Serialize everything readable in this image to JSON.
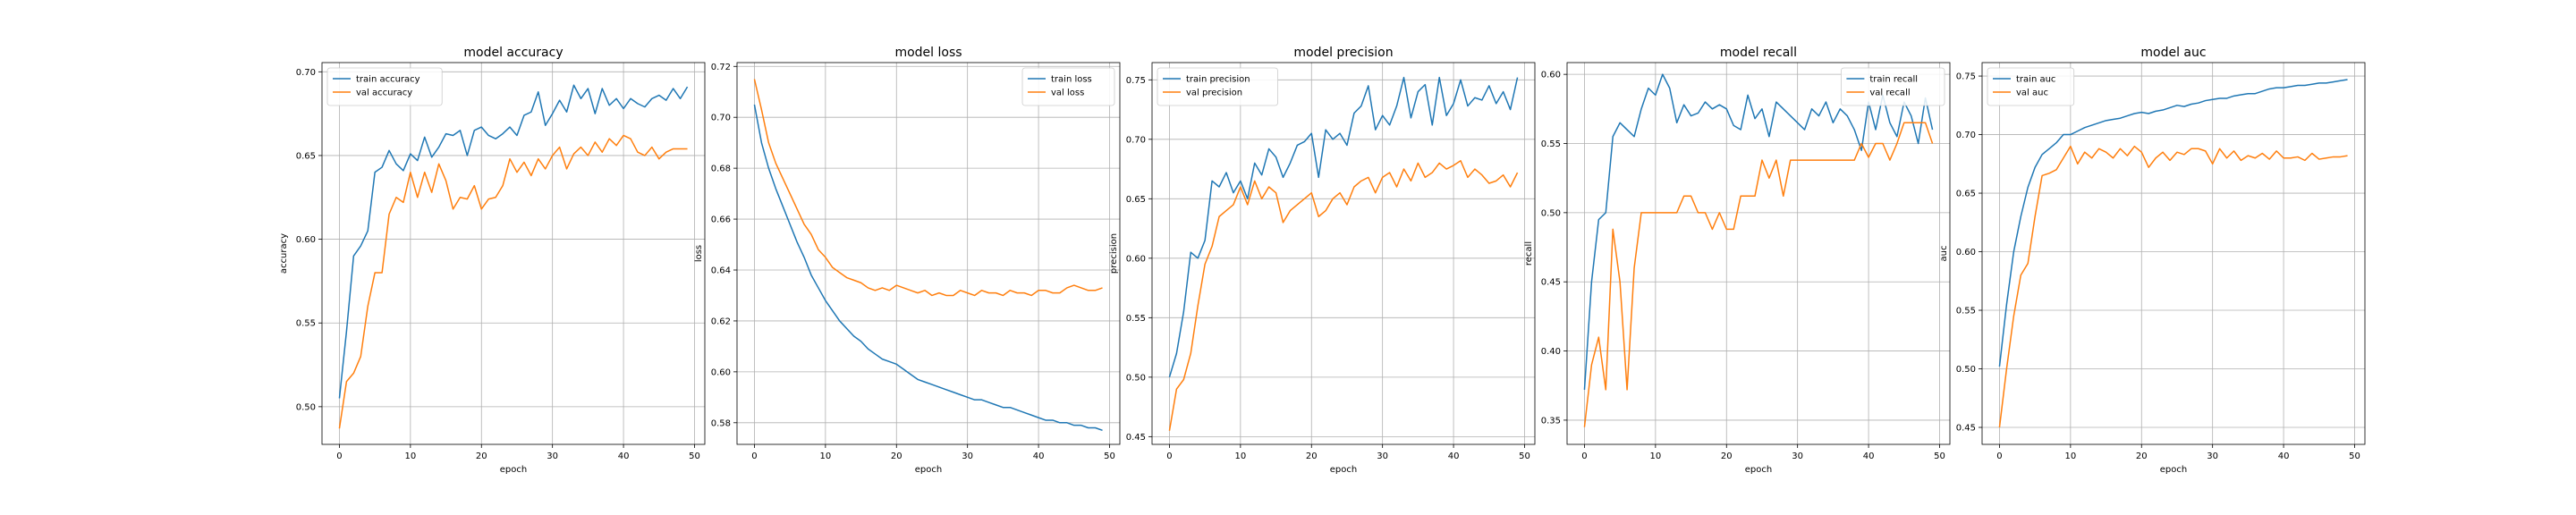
{
  "chart_data": [
    {
      "type": "line",
      "title": "model accuracy",
      "xlabel": "epoch",
      "ylabel": "accuracy",
      "xlim": [
        -2.45,
        51.45
      ],
      "ylim": [
        0.4775,
        0.7055
      ],
      "xticks": [
        "0",
        "10",
        "20",
        "30",
        "40",
        "50"
      ],
      "yticks": [
        "0.50",
        "0.55",
        "0.60",
        "0.65",
        "0.70"
      ],
      "grid": true,
      "legend_position": "upper-left",
      "series": [
        {
          "name": "train accuracy",
          "color": "#1f77b4",
          "values": [
            0.505,
            0.545,
            0.59,
            0.596,
            0.605,
            0.64,
            0.643,
            0.653,
            0.645,
            0.641,
            0.651,
            0.647,
            0.661,
            0.649,
            0.655,
            0.663,
            0.662,
            0.665,
            0.65,
            0.665,
            0.667,
            0.662,
            0.66,
            0.663,
            0.667,
            0.662,
            0.674,
            0.676,
            0.688,
            0.668,
            0.675,
            0.683,
            0.676,
            0.692,
            0.684,
            0.69,
            0.675,
            0.69,
            0.68,
            0.684,
            0.678,
            0.684,
            0.681,
            0.679,
            0.684,
            0.686,
            0.683,
            0.69,
            0.684,
            0.691
          ]
        },
        {
          "name": "val accuracy",
          "color": "#ff7f0e",
          "values": [
            0.487,
            0.515,
            0.52,
            0.53,
            0.56,
            0.58,
            0.58,
            0.615,
            0.625,
            0.622,
            0.64,
            0.625,
            0.64,
            0.628,
            0.645,
            0.635,
            0.618,
            0.625,
            0.624,
            0.632,
            0.618,
            0.624,
            0.625,
            0.632,
            0.648,
            0.64,
            0.646,
            0.638,
            0.648,
            0.642,
            0.65,
            0.655,
            0.642,
            0.651,
            0.655,
            0.65,
            0.658,
            0.652,
            0.66,
            0.656,
            0.662,
            0.66,
            0.652,
            0.65,
            0.655,
            0.648,
            0.652,
            0.654,
            0.654,
            0.654
          ]
        }
      ]
    },
    {
      "type": "line",
      "title": "model loss",
      "xlabel": "epoch",
      "ylabel": "loss",
      "xlim": [
        -2.45,
        51.45
      ],
      "ylim": [
        0.5715,
        0.7215
      ],
      "xticks": [
        "0",
        "10",
        "20",
        "30",
        "40",
        "50"
      ],
      "yticks": [
        "0.58",
        "0.60",
        "0.62",
        "0.64",
        "0.66",
        "0.68",
        "0.70",
        "0.72"
      ],
      "grid": true,
      "legend_position": "upper-right",
      "series": [
        {
          "name": "train loss",
          "color": "#1f77b4",
          "values": [
            0.705,
            0.69,
            0.68,
            0.672,
            0.665,
            0.658,
            0.651,
            0.645,
            0.638,
            0.633,
            0.628,
            0.624,
            0.62,
            0.617,
            0.614,
            0.612,
            0.609,
            0.607,
            0.605,
            0.604,
            0.603,
            0.601,
            0.599,
            0.597,
            0.596,
            0.595,
            0.594,
            0.593,
            0.592,
            0.591,
            0.59,
            0.589,
            0.589,
            0.588,
            0.587,
            0.586,
            0.586,
            0.585,
            0.584,
            0.583,
            0.582,
            0.581,
            0.581,
            0.58,
            0.58,
            0.579,
            0.579,
            0.578,
            0.578,
            0.577
          ]
        },
        {
          "name": "val loss",
          "color": "#ff7f0e",
          "values": [
            0.715,
            0.703,
            0.69,
            0.682,
            0.676,
            0.67,
            0.664,
            0.658,
            0.654,
            0.648,
            0.645,
            0.641,
            0.639,
            0.637,
            0.636,
            0.635,
            0.633,
            0.632,
            0.633,
            0.632,
            0.634,
            0.633,
            0.632,
            0.631,
            0.632,
            0.63,
            0.631,
            0.63,
            0.63,
            0.632,
            0.631,
            0.63,
            0.632,
            0.631,
            0.631,
            0.63,
            0.632,
            0.631,
            0.631,
            0.63,
            0.632,
            0.632,
            0.631,
            0.631,
            0.633,
            0.634,
            0.633,
            0.632,
            0.632,
            0.633
          ]
        }
      ]
    },
    {
      "type": "line",
      "title": "model precision",
      "xlabel": "epoch",
      "ylabel": "precision",
      "xlim": [
        -2.45,
        51.45
      ],
      "ylim": [
        0.4435,
        0.7645
      ],
      "xticks": [
        "0",
        "10",
        "20",
        "30",
        "40",
        "50"
      ],
      "yticks": [
        "0.45",
        "0.50",
        "0.55",
        "0.60",
        "0.65",
        "0.70",
        "0.75"
      ],
      "grid": true,
      "legend_position": "upper-left",
      "series": [
        {
          "name": "train precision",
          "color": "#1f77b4",
          "values": [
            0.5,
            0.52,
            0.555,
            0.605,
            0.6,
            0.615,
            0.665,
            0.66,
            0.672,
            0.655,
            0.665,
            0.65,
            0.68,
            0.67,
            0.692,
            0.685,
            0.668,
            0.68,
            0.695,
            0.698,
            0.705,
            0.668,
            0.708,
            0.7,
            0.705,
            0.695,
            0.722,
            0.728,
            0.745,
            0.708,
            0.72,
            0.712,
            0.728,
            0.752,
            0.718,
            0.74,
            0.746,
            0.712,
            0.752,
            0.72,
            0.73,
            0.75,
            0.728,
            0.735,
            0.733,
            0.745,
            0.73,
            0.74,
            0.725,
            0.752
          ]
        },
        {
          "name": "val precision",
          "color": "#ff7f0e",
          "values": [
            0.455,
            0.49,
            0.498,
            0.52,
            0.56,
            0.595,
            0.61,
            0.635,
            0.64,
            0.645,
            0.66,
            0.645,
            0.665,
            0.65,
            0.66,
            0.655,
            0.63,
            0.64,
            0.645,
            0.65,
            0.655,
            0.635,
            0.64,
            0.65,
            0.655,
            0.645,
            0.66,
            0.665,
            0.668,
            0.655,
            0.668,
            0.672,
            0.66,
            0.675,
            0.665,
            0.68,
            0.668,
            0.672,
            0.68,
            0.675,
            0.678,
            0.682,
            0.668,
            0.675,
            0.67,
            0.663,
            0.665,
            0.67,
            0.66,
            0.672
          ]
        }
      ]
    },
    {
      "type": "line",
      "title": "model recall",
      "xlabel": "epoch",
      "ylabel": "recall",
      "xlim": [
        -2.45,
        51.45
      ],
      "ylim": [
        0.3325,
        0.6085
      ],
      "xticks": [
        "0",
        "10",
        "20",
        "30",
        "40",
        "50"
      ],
      "yticks": [
        "0.35",
        "0.40",
        "0.45",
        "0.50",
        "0.55",
        "0.60"
      ],
      "grid": true,
      "legend_position": "upper-right",
      "series": [
        {
          "name": "train recall",
          "color": "#1f77b4",
          "values": [
            0.372,
            0.45,
            0.495,
            0.5,
            0.555,
            0.565,
            0.56,
            0.555,
            0.575,
            0.59,
            0.585,
            0.6,
            0.59,
            0.565,
            0.578,
            0.57,
            0.572,
            0.58,
            0.575,
            0.578,
            0.575,
            0.563,
            0.56,
            0.585,
            0.568,
            0.575,
            0.555,
            0.58,
            0.575,
            0.57,
            0.565,
            0.56,
            0.575,
            0.57,
            0.58,
            0.565,
            0.575,
            0.57,
            0.56,
            0.545,
            0.58,
            0.56,
            0.585,
            0.565,
            0.555,
            0.58,
            0.57,
            0.55,
            0.583,
            0.56
          ]
        },
        {
          "name": "val recall",
          "color": "#ff7f0e",
          "values": [
            0.345,
            0.39,
            0.41,
            0.372,
            0.488,
            0.45,
            0.372,
            0.46,
            0.5,
            0.5,
            0.5,
            0.5,
            0.5,
            0.5,
            0.512,
            0.512,
            0.5,
            0.5,
            0.488,
            0.5,
            0.488,
            0.488,
            0.512,
            0.512,
            0.512,
            0.538,
            0.525,
            0.538,
            0.512,
            0.538,
            0.538,
            0.538,
            0.538,
            0.538,
            0.538,
            0.538,
            0.538,
            0.538,
            0.538,
            0.55,
            0.54,
            0.55,
            0.55,
            0.538,
            0.55,
            0.565,
            0.565,
            0.565,
            0.565,
            0.55
          ]
        }
      ]
    },
    {
      "type": "line",
      "title": "model auc",
      "xlabel": "epoch",
      "ylabel": "auc",
      "xlim": [
        -2.45,
        51.45
      ],
      "ylim": [
        0.4355,
        0.7615
      ],
      "xticks": [
        "0",
        "10",
        "20",
        "30",
        "40",
        "50"
      ],
      "yticks": [
        "0.45",
        "0.50",
        "0.55",
        "0.60",
        "0.65",
        "0.70",
        "0.75"
      ],
      "grid": true,
      "legend_position": "upper-left",
      "series": [
        {
          "name": "train auc",
          "color": "#1f77b4",
          "values": [
            0.502,
            0.555,
            0.6,
            0.63,
            0.655,
            0.672,
            0.683,
            0.688,
            0.693,
            0.7,
            0.7,
            0.703,
            0.706,
            0.708,
            0.71,
            0.712,
            0.713,
            0.714,
            0.716,
            0.718,
            0.719,
            0.718,
            0.72,
            0.721,
            0.723,
            0.725,
            0.724,
            0.726,
            0.727,
            0.729,
            0.73,
            0.731,
            0.731,
            0.733,
            0.734,
            0.735,
            0.735,
            0.737,
            0.739,
            0.74,
            0.74,
            0.741,
            0.742,
            0.742,
            0.743,
            0.744,
            0.744,
            0.745,
            0.746,
            0.747
          ]
        },
        {
          "name": "val auc",
          "color": "#ff7f0e",
          "values": [
            0.45,
            0.5,
            0.545,
            0.58,
            0.59,
            0.63,
            0.665,
            0.667,
            0.67,
            0.68,
            0.69,
            0.675,
            0.685,
            0.68,
            0.688,
            0.685,
            0.68,
            0.688,
            0.682,
            0.69,
            0.685,
            0.672,
            0.68,
            0.685,
            0.678,
            0.685,
            0.683,
            0.688,
            0.688,
            0.686,
            0.675,
            0.688,
            0.68,
            0.686,
            0.678,
            0.682,
            0.68,
            0.684,
            0.679,
            0.686,
            0.68,
            0.68,
            0.681,
            0.678,
            0.684,
            0.679,
            0.68,
            0.681,
            0.681,
            0.682
          ]
        }
      ]
    }
  ]
}
